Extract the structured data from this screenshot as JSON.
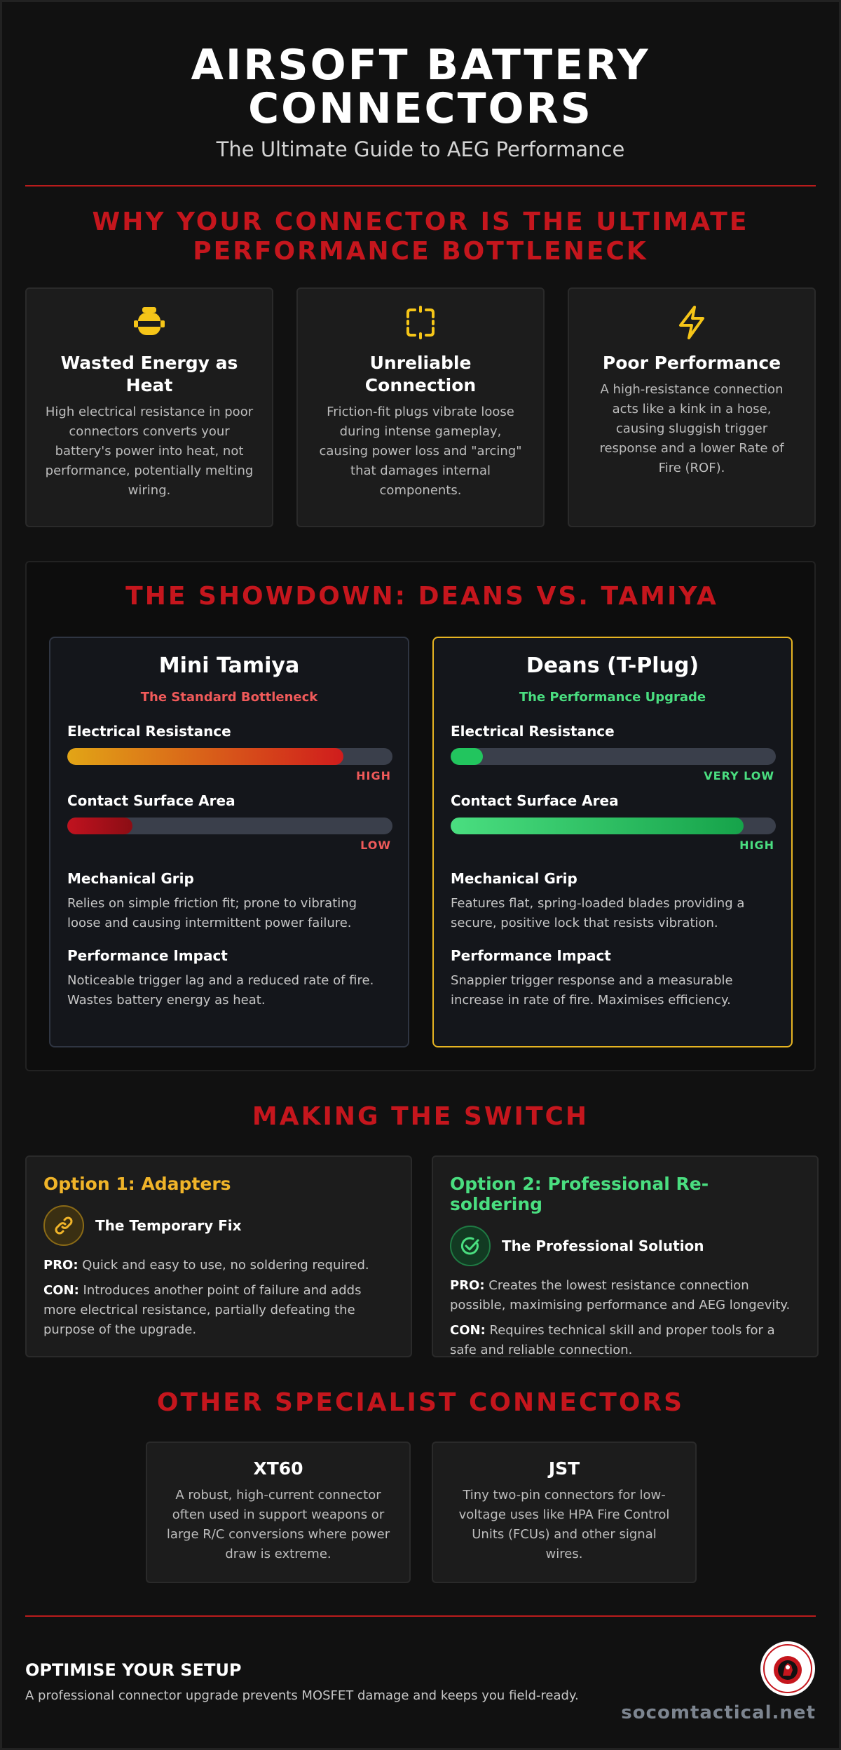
{
  "header": {
    "title_line1": "AIRSOFT BATTERY",
    "title_line2": "CONNECTORS",
    "subtitle": "The Ultimate Guide to AEG Performance"
  },
  "why": {
    "title_line1": "WHY YOUR CONNECTOR IS THE ULTIMATE",
    "title_line2": "PERFORMANCE BOTTLENECK",
    "cards": [
      {
        "icon": "heater-icon",
        "title": "Wasted Energy as Heat",
        "text": "High electrical resistance in poor connectors converts your battery's power into heat, not performance, potentially melting wiring."
      },
      {
        "icon": "broken-frame-icon",
        "title": "Unreliable Connection",
        "text": "Friction-fit plugs vibrate loose during intense gameplay, causing power loss and \"arcing\" that damages internal components."
      },
      {
        "icon": "lightning-icon",
        "title": "Poor Performance",
        "text": "A high-resistance connection acts like a kink in a hose, causing sluggish trigger response and a lower Rate of Fire (ROF)."
      }
    ]
  },
  "showdown": {
    "title": "THE SHOWDOWN: DEANS VS. TAMIYA",
    "tamiya": {
      "name": "Mini Tamiya",
      "tag": "The Standard Bottleneck",
      "resistance_label": "Electrical Resistance",
      "resistance_value": 0.85,
      "resistance_level": "HIGH",
      "contact_label": "Contact Surface Area",
      "contact_value": 0.2,
      "contact_level": "LOW",
      "grip_title": "Mechanical Grip",
      "grip_text": "Relies on simple friction fit; prone to vibrating loose and causing intermittent power failure.",
      "impact_title": "Performance Impact",
      "impact_text": "Noticeable trigger lag and a reduced rate of fire. Wastes battery energy as heat."
    },
    "deans": {
      "name": "Deans (T-Plug)",
      "tag": "The Performance Upgrade",
      "resistance_label": "Electrical Resistance",
      "resistance_value": 0.1,
      "resistance_level": "VERY LOW",
      "contact_label": "Contact Surface Area",
      "contact_value": 0.9,
      "contact_level": "HIGH",
      "grip_title": "Mechanical Grip",
      "grip_text": "Features flat, spring-loaded blades providing a secure, positive lock that resists vibration.",
      "impact_title": "Performance Impact",
      "impact_text": "Snappier trigger response and a measurable increase in rate of fire. Maximises efficiency."
    }
  },
  "switch": {
    "title": "MAKING THE SWITCH",
    "option1": {
      "title": "Option 1: Adapters",
      "icon": "link-icon",
      "label": "The Temporary Fix",
      "pro_key": "PRO:",
      "pro": "Quick and easy to use, no soldering required.",
      "con_key": "CON:",
      "con": "Introduces another point of failure and adds more electrical resistance, partially defeating the purpose of the upgrade."
    },
    "option2": {
      "title": "Option 2: Professional Re-soldering",
      "icon": "check-circle-icon",
      "label": "The Professional Solution",
      "pro_key": "PRO:",
      "pro": "Creates the lowest resistance connection possible, maximising performance and AEG longevity.",
      "con_key": "CON:",
      "con": "Requires technical skill and proper tools for a safe and reliable connection."
    }
  },
  "specialist": {
    "title": "OTHER SPECIALIST CONNECTORS",
    "cards": [
      {
        "title": "XT60",
        "text": "A robust, high-current connector often used in support weapons or large R/C conversions where power draw is extreme."
      },
      {
        "title": "JST",
        "text": "Tiny two-pin connectors for low-voltage uses like HPA Fire Control Units (FCUs) and other signal wires."
      }
    ]
  },
  "footer": {
    "heading": "OPTIMISE YOUR SETUP",
    "text": "A professional connector upgrade prevents MOSFET damage and keeps you field-ready.",
    "site": "socomtactical.net",
    "logo": "kicking-mustang-logo"
  },
  "colors": {
    "accent_red": "#c5161d",
    "gold": "#e6b422",
    "green": "#4ade80",
    "level_red": "#ef4444",
    "background": "#111111"
  }
}
